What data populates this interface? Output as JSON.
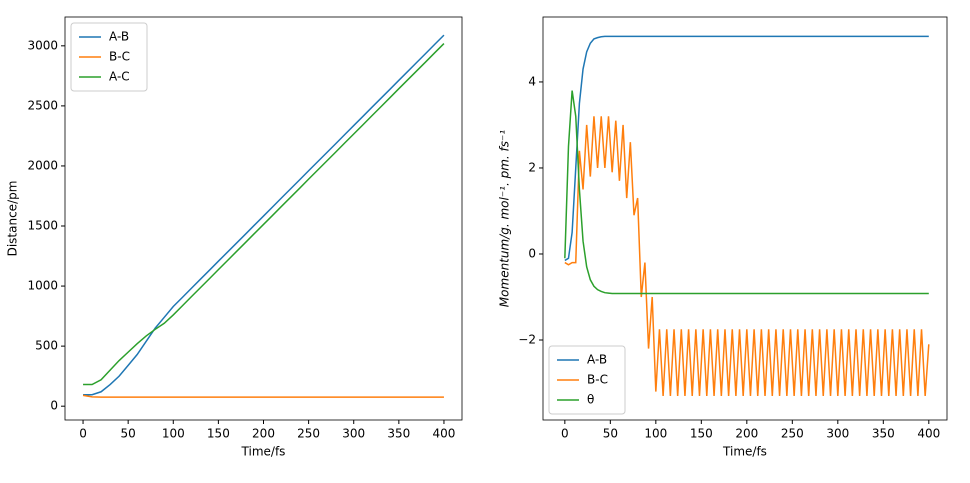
{
  "chart_data": [
    {
      "type": "line",
      "xlabel": "Time/fs",
      "ylabel": "Distance/pm",
      "legend_loc": "upper left",
      "xlim": [
        -20,
        420
      ],
      "ylim": [
        -115,
        3240
      ],
      "xticks": [
        0,
        50,
        100,
        150,
        200,
        250,
        300,
        350,
        400
      ],
      "yticks": [
        0,
        500,
        1000,
        1500,
        2000,
        2500,
        3000
      ],
      "x": [
        0,
        10,
        20,
        30,
        40,
        50,
        60,
        70,
        80,
        90,
        100,
        110,
        120,
        130,
        140,
        150,
        160,
        170,
        180,
        190,
        200,
        210,
        220,
        230,
        240,
        250,
        260,
        270,
        280,
        290,
        300,
        310,
        320,
        330,
        340,
        350,
        360,
        370,
        380,
        390,
        400
      ],
      "series": [
        {
          "name": "A-B",
          "color": "#1f77b4",
          "values": [
            95,
            95,
            120,
            180,
            250,
            340,
            430,
            540,
            650,
            740,
            830,
            905,
            981,
            1056,
            1131,
            1207,
            1282,
            1357,
            1432,
            1508,
            1583,
            1658,
            1734,
            1809,
            1884,
            1960,
            2035,
            2110,
            2185,
            2261,
            2336,
            2411,
            2487,
            2562,
            2637,
            2713,
            2788,
            2863,
            2938,
            3014,
            3089
          ]
        },
        {
          "name": "B-C",
          "color": "#ff7f0e",
          "values": [
            90,
            78,
            75,
            75,
            75,
            75,
            75,
            75,
            75,
            75,
            75,
            75,
            75,
            75,
            75,
            75,
            75,
            75,
            75,
            75,
            75,
            75,
            75,
            75,
            75,
            75,
            75,
            75,
            75,
            75,
            75,
            75,
            75,
            75,
            75,
            75,
            75,
            75,
            75,
            75,
            75
          ]
        },
        {
          "name": "A-C",
          "color": "#2ca02c",
          "values": [
            180,
            180,
            220,
            300,
            380,
            450,
            520,
            585,
            640,
            690,
            760,
            835,
            911,
            986,
            1061,
            1137,
            1212,
            1287,
            1362,
            1438,
            1513,
            1588,
            1664,
            1739,
            1814,
            1890,
            1965,
            2040,
            2115,
            2191,
            2266,
            2341,
            2417,
            2492,
            2567,
            2643,
            2718,
            2793,
            2868,
            2944,
            3019
          ]
        }
      ]
    },
    {
      "type": "line",
      "xlabel": "Time/fs",
      "ylabel": "Momentum/g. mol⁻¹. pm. fs⁻¹",
      "legend_loc": "lower left",
      "xlim": [
        -24,
        420
      ],
      "ylim": [
        -3.86,
        5.51
      ],
      "xticks": [
        0,
        50,
        100,
        150,
        200,
        250,
        300,
        350,
        400
      ],
      "yticks": [
        {
          "value": -2,
          "label": "−2"
        },
        0,
        2,
        4
      ],
      "x": [
        0,
        4,
        8,
        12,
        16,
        20,
        24,
        28,
        32,
        36,
        40,
        44,
        48,
        52,
        56,
        60,
        64,
        68,
        72,
        76,
        80,
        84,
        88,
        92,
        96,
        100,
        104,
        108,
        112,
        116,
        120,
        124,
        128,
        132,
        136,
        140,
        144,
        148,
        152,
        156,
        160,
        164,
        168,
        172,
        176,
        180,
        184,
        188,
        192,
        196,
        200,
        204,
        208,
        212,
        216,
        220,
        224,
        228,
        232,
        236,
        240,
        244,
        248,
        252,
        256,
        260,
        264,
        268,
        272,
        276,
        280,
        284,
        288,
        292,
        296,
        300,
        304,
        308,
        312,
        316,
        320,
        324,
        328,
        332,
        336,
        340,
        344,
        348,
        352,
        356,
        360,
        364,
        368,
        372,
        376,
        380,
        384,
        388,
        392,
        396,
        400
      ],
      "series": [
        {
          "name": "A-B",
          "color": "#1f77b4",
          "values": [
            -0.15,
            -0.1,
            0.5,
            2.0,
            3.5,
            4.3,
            4.7,
            4.9,
            5.0,
            5.03,
            5.05,
            5.06,
            5.06,
            5.06,
            5.06,
            5.06,
            5.06,
            5.06,
            5.06,
            5.06,
            5.06,
            5.06,
            5.06,
            5.06,
            5.06,
            5.06,
            5.06,
            5.06,
            5.06,
            5.06,
            5.06,
            5.06,
            5.06,
            5.06,
            5.06,
            5.06,
            5.06,
            5.06,
            5.06,
            5.06,
            5.06,
            5.06,
            5.06,
            5.06,
            5.06,
            5.06,
            5.06,
            5.06,
            5.06,
            5.06,
            5.06,
            5.06,
            5.06,
            5.06,
            5.06,
            5.06,
            5.06,
            5.06,
            5.06,
            5.06,
            5.06,
            5.06,
            5.06,
            5.06,
            5.06,
            5.06,
            5.06,
            5.06,
            5.06,
            5.06,
            5.06,
            5.06,
            5.06,
            5.06,
            5.06,
            5.06,
            5.06,
            5.06,
            5.06,
            5.06,
            5.06,
            5.06,
            5.06,
            5.06,
            5.06,
            5.06,
            5.06,
            5.06,
            5.06,
            5.06,
            5.06,
            5.06,
            5.06,
            5.06,
            5.06,
            5.06,
            5.06,
            5.06,
            5.06,
            5.06,
            5.06
          ]
        },
        {
          "name": "B-C",
          "color": "#ff7f0e",
          "values": [
            -0.2,
            -0.25,
            -0.2,
            -0.2,
            2.4,
            1.5,
            3.0,
            1.8,
            3.2,
            2.0,
            3.2,
            2.0,
            3.2,
            1.9,
            3.1,
            1.7,
            3.0,
            1.3,
            2.6,
            0.9,
            1.3,
            -1.0,
            -0.2,
            -2.2,
            -1.0,
            -3.2,
            -1.75,
            -3.3,
            -1.75,
            -3.3,
            -1.75,
            -3.3,
            -1.75,
            -3.3,
            -1.75,
            -3.3,
            -1.75,
            -3.3,
            -1.75,
            -3.3,
            -1.75,
            -3.3,
            -1.75,
            -3.3,
            -1.75,
            -3.3,
            -1.75,
            -3.3,
            -1.75,
            -3.3,
            -1.75,
            -3.3,
            -1.75,
            -3.3,
            -1.75,
            -3.3,
            -1.75,
            -3.3,
            -1.75,
            -3.3,
            -1.75,
            -3.3,
            -1.75,
            -3.3,
            -1.75,
            -3.3,
            -1.75,
            -3.3,
            -1.75,
            -3.3,
            -1.75,
            -3.3,
            -1.75,
            -3.3,
            -1.75,
            -3.3,
            -1.75,
            -3.3,
            -1.75,
            -3.3,
            -1.75,
            -3.3,
            -1.75,
            -3.3,
            -1.75,
            -3.3,
            -1.75,
            -3.3,
            -1.75,
            -3.3,
            -1.75,
            -3.3,
            -1.75,
            -3.3,
            -1.75,
            -3.3,
            -1.75,
            -3.3,
            -1.75,
            -3.3,
            -2.1
          ]
        },
        {
          "name": "θ",
          "color": "#2ca02c",
          "values": [
            -0.1,
            2.5,
            3.8,
            3.2,
            1.5,
            0.3,
            -0.3,
            -0.6,
            -0.75,
            -0.83,
            -0.87,
            -0.9,
            -0.91,
            -0.92,
            -0.92,
            -0.92,
            -0.92,
            -0.92,
            -0.92,
            -0.92,
            -0.92,
            -0.92,
            -0.92,
            -0.92,
            -0.92,
            -0.92,
            -0.92,
            -0.92,
            -0.92,
            -0.92,
            -0.92,
            -0.92,
            -0.92,
            -0.92,
            -0.92,
            -0.92,
            -0.92,
            -0.92,
            -0.92,
            -0.92,
            -0.92,
            -0.92,
            -0.92,
            -0.92,
            -0.92,
            -0.92,
            -0.92,
            -0.92,
            -0.92,
            -0.92,
            -0.92,
            -0.92,
            -0.92,
            -0.92,
            -0.92,
            -0.92,
            -0.92,
            -0.92,
            -0.92,
            -0.92,
            -0.92,
            -0.92,
            -0.92,
            -0.92,
            -0.92,
            -0.92,
            -0.92,
            -0.92,
            -0.92,
            -0.92,
            -0.92,
            -0.92,
            -0.92,
            -0.92,
            -0.92,
            -0.92,
            -0.92,
            -0.92,
            -0.92,
            -0.92,
            -0.92,
            -0.92,
            -0.92,
            -0.92,
            -0.92,
            -0.92,
            -0.92,
            -0.92,
            -0.92,
            -0.92,
            -0.92,
            -0.92,
            -0.92,
            -0.92,
            -0.92,
            -0.92,
            -0.92,
            -0.92,
            -0.92,
            -0.92,
            -0.92
          ]
        }
      ]
    }
  ]
}
